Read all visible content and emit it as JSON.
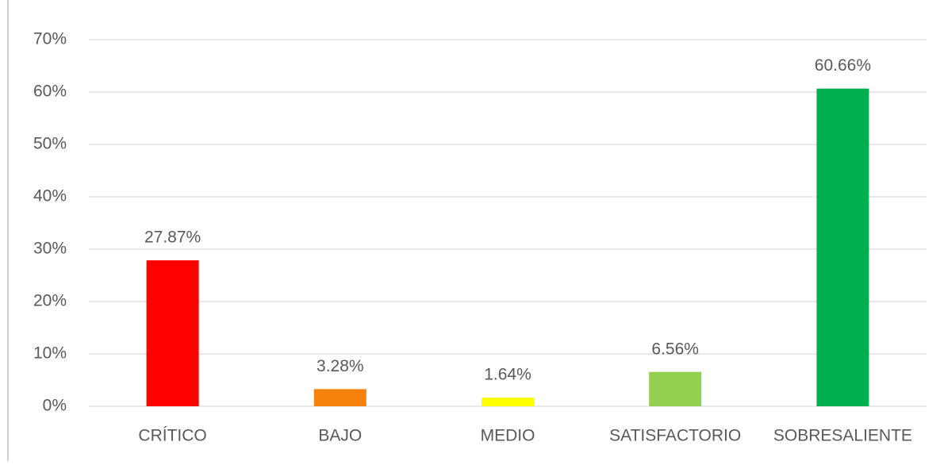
{
  "chart_data": {
    "type": "bar",
    "categories": [
      "CRÍTICO",
      "BAJO",
      "MEDIO",
      "SATISFACTORIO",
      "SOBRESALIENTE"
    ],
    "values": [
      27.87,
      3.28,
      1.64,
      6.56,
      60.66
    ],
    "value_labels": [
      "27.87%",
      "3.28%",
      "1.64%",
      "6.56%",
      "60.66%"
    ],
    "colors": [
      "#ff0000",
      "#f5820d",
      "#ffff00",
      "#92d050",
      "#00b050"
    ],
    "ylim": [
      0,
      70
    ],
    "yticks": [
      {
        "value": 0,
        "label": "0%"
      },
      {
        "value": 10,
        "label": "10%"
      },
      {
        "value": 20,
        "label": "20%"
      },
      {
        "value": 30,
        "label": "30%"
      },
      {
        "value": 40,
        "label": "40%"
      },
      {
        "value": 50,
        "label": "50%"
      },
      {
        "value": 60,
        "label": "60%"
      },
      {
        "value": 70,
        "label": "70%"
      }
    ],
    "grid": true
  }
}
